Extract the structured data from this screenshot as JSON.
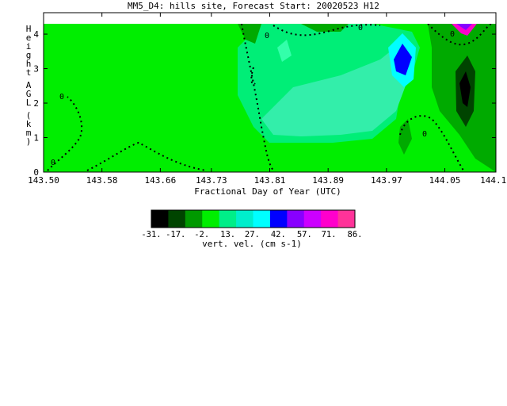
{
  "chart_data": {
    "type": "heatmap",
    "title": "MM5_D4: hills site,  Forecast Start: 20020523 H12",
    "xlabel": "Fractional Day of Year (UTC)",
    "ylabel": "Height AGL (km)",
    "xlim": [
      143.5,
      144.12
    ],
    "ylim": [
      0,
      4.3
    ],
    "xticks": [
      "143.50",
      "143.58",
      "143.66",
      "143.73",
      "143.81",
      "143.89",
      "143.97",
      "144.05",
      "144.12"
    ],
    "yticks": [
      "0",
      "1",
      "2",
      "3",
      "4"
    ],
    "colorbar": {
      "label": "vert. vel. (cm s-1)",
      "tick_labels": [
        "-31.",
        "-17.",
        "-2.",
        "13.",
        "27.",
        "42.",
        "57.",
        "71.",
        "86."
      ],
      "range": [
        -31,
        86
      ],
      "colors": [
        "#000000",
        "#004400",
        "#009900",
        "#00ee00",
        "#00ee88",
        "#00eecc",
        "#00ffff",
        "#0000ff",
        "#8800ff",
        "#cc00ff",
        "#ff00cc",
        "#ff3399"
      ]
    },
    "zero_contour_label": "0"
  }
}
